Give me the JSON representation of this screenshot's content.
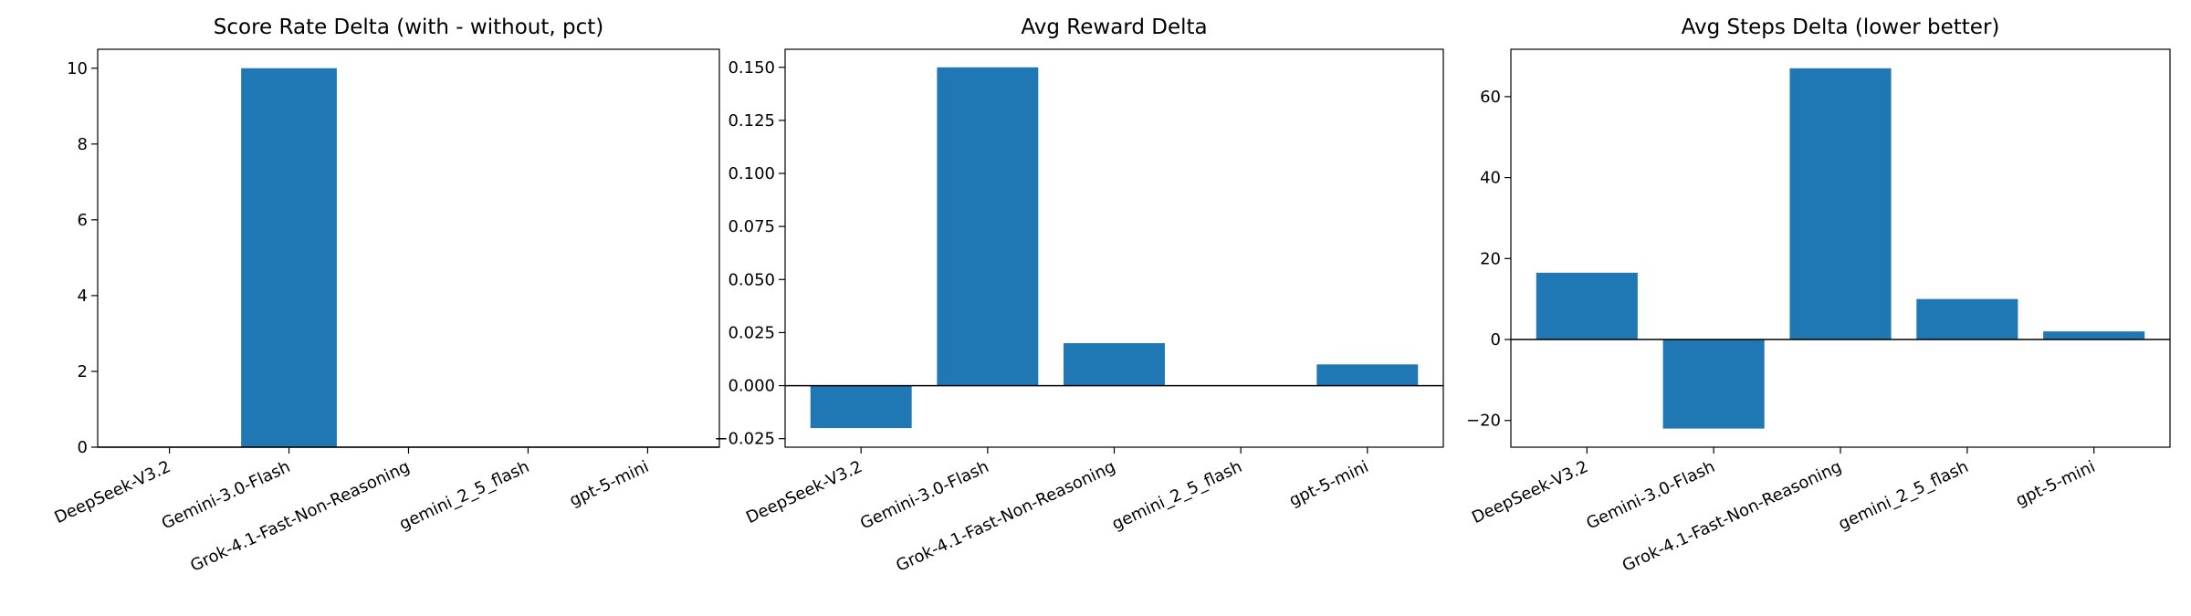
{
  "chart_data": [
    {
      "type": "bar",
      "title": "Score Rate Delta (with - without, pct)",
      "categories": [
        "DeepSeek-V3.2",
        "Gemini-3.0-Flash",
        "Grok-4.1-Fast-Non-Reasoning",
        "gemini_2_5_flash",
        "gpt-5-mini"
      ],
      "values": [
        0,
        10,
        0,
        0,
        0
      ],
      "color": "#1f77b4",
      "zero_line": true,
      "ylim": [
        0,
        10.5
      ],
      "yticks": [
        0,
        2,
        4,
        6,
        8,
        10
      ]
    },
    {
      "type": "bar",
      "title": "Avg Reward Delta",
      "categories": [
        "DeepSeek-V3.2",
        "Gemini-3.0-Flash",
        "Grok-4.1-Fast-Non-Reasoning",
        "gemini_2_5_flash",
        "gpt-5-mini"
      ],
      "values": [
        -0.02,
        0.15,
        0.02,
        0,
        0.01
      ],
      "color": "#1f77b4",
      "zero_line": true,
      "ylim": [
        -0.029,
        0.1585
      ],
      "yticks": [
        {
          "value": -0.025,
          "label": "−0.025"
        },
        {
          "value": 0,
          "label": "0.000"
        },
        {
          "value": 0.025,
          "label": "0.025"
        },
        {
          "value": 0.05,
          "label": "0.050"
        },
        {
          "value": 0.075,
          "label": "0.075"
        },
        {
          "value": 0.1,
          "label": "0.100"
        },
        {
          "value": 0.125,
          "label": "0.125"
        },
        {
          "value": 0.15,
          "label": "0.150"
        }
      ]
    },
    {
      "type": "bar",
      "title": "Avg Steps Delta (lower better)",
      "categories": [
        "DeepSeek-V3.2",
        "Gemini-3.0-Flash",
        "Grok-4.1-Fast-Non-Reasoning",
        "gemini_2_5_flash",
        "gpt-5-mini"
      ],
      "values": [
        16.5,
        -22,
        67,
        10,
        2
      ],
      "color": "#1f77b4",
      "zero_line": true,
      "ylim": [
        -26.6,
        71.7
      ],
      "yticks": [
        {
          "value": -20,
          "label": "−20"
        },
        0,
        20,
        40,
        60
      ]
    }
  ]
}
